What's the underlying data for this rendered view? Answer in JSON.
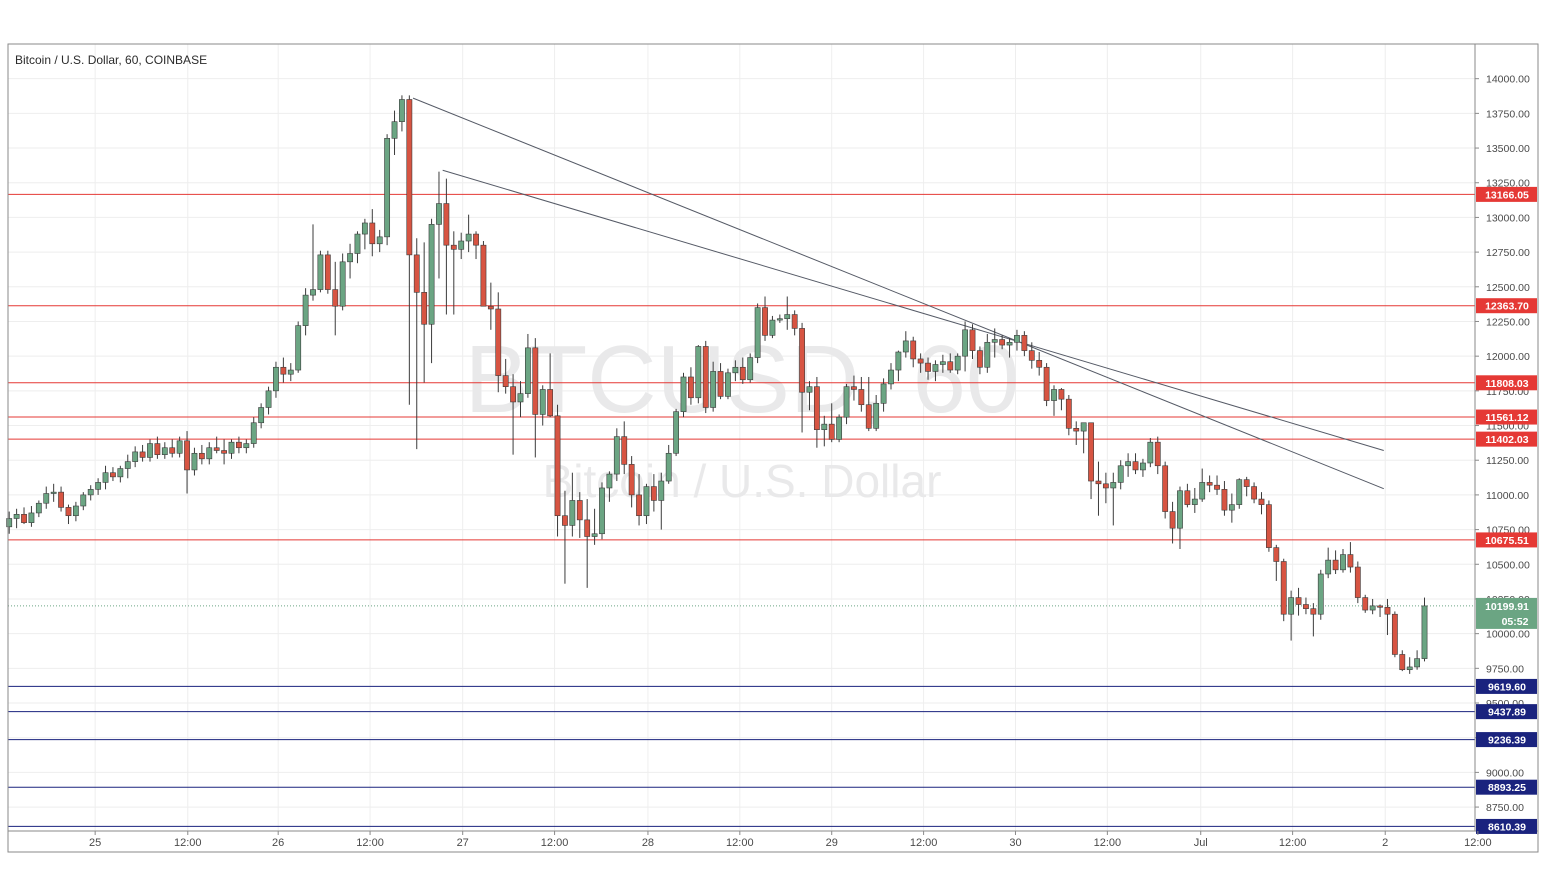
{
  "chart_data": {
    "type": "candlestick",
    "title": "Bitcoin / U.S. Dollar, 60, COINBASE",
    "watermark": {
      "symbol": "BTCUSD, 60",
      "name": "Bitcoin / U.S. Dollar"
    },
    "x_range": [
      0,
      187
    ],
    "y_range": [
      8577.5,
      14250
    ],
    "price_scale_ticks": [
      8750,
      9000,
      9250,
      9500,
      9750,
      10000,
      10250,
      10500,
      10750,
      11000,
      11250,
      11500,
      11750,
      12000,
      12250,
      12500,
      12750,
      13000,
      13250,
      13500,
      13750,
      14000
    ],
    "time_labels": [
      {
        "bar": 11.6,
        "label": "25"
      },
      {
        "bar": 24.1,
        "label": "12:00"
      },
      {
        "bar": 36.3,
        "label": "26"
      },
      {
        "bar": 48.7,
        "label": "12:00"
      },
      {
        "bar": 61.2,
        "label": "27"
      },
      {
        "bar": 73.6,
        "label": "12:00"
      },
      {
        "bar": 86.2,
        "label": "28"
      },
      {
        "bar": 98.6,
        "label": "12:00"
      },
      {
        "bar": 111.0,
        "label": "29"
      },
      {
        "bar": 123.4,
        "label": "12:00"
      },
      {
        "bar": 135.8,
        "label": "30"
      },
      {
        "bar": 148.2,
        "label": "12:00"
      },
      {
        "bar": 160.8,
        "label": "Jul"
      },
      {
        "bar": 173.2,
        "label": "12:00"
      },
      {
        "bar": 185.7,
        "label": "2"
      },
      {
        "bar": 198.2,
        "label": "12:00"
      }
    ],
    "candles": [
      [
        10770,
        10880,
        10720,
        10830
      ],
      [
        10830,
        10900,
        10760,
        10860
      ],
      [
        10860,
        10910,
        10790,
        10800
      ],
      [
        10800,
        10920,
        10770,
        10870
      ],
      [
        10870,
        10960,
        10840,
        10940
      ],
      [
        10940,
        11060,
        10900,
        11010
      ],
      [
        11010,
        11080,
        10950,
        11020
      ],
      [
        11020,
        11060,
        10880,
        10910
      ],
      [
        10910,
        10930,
        10790,
        10850
      ],
      [
        10850,
        10950,
        10810,
        10920
      ],
      [
        10920,
        11020,
        10890,
        11000
      ],
      [
        11000,
        11070,
        10960,
        11040
      ],
      [
        11040,
        11120,
        11000,
        11090
      ],
      [
        11090,
        11210,
        11040,
        11160
      ],
      [
        11160,
        11200,
        11100,
        11130
      ],
      [
        11130,
        11210,
        11090,
        11190
      ],
      [
        11190,
        11290,
        11120,
        11240
      ],
      [
        11240,
        11350,
        11200,
        11310
      ],
      [
        11310,
        11360,
        11240,
        11270
      ],
      [
        11270,
        11400,
        11240,
        11370
      ],
      [
        11370,
        11420,
        11260,
        11290
      ],
      [
        11290,
        11380,
        11260,
        11340
      ],
      [
        11340,
        11400,
        11270,
        11300
      ],
      [
        11300,
        11420,
        11270,
        11390
      ],
      [
        11390,
        11460,
        11010,
        11180
      ],
      [
        11180,
        11340,
        11140,
        11300
      ],
      [
        11300,
        11360,
        11220,
        11260
      ],
      [
        11260,
        11380,
        11220,
        11340
      ],
      [
        11340,
        11420,
        11300,
        11320
      ],
      [
        11320,
        11400,
        11220,
        11300
      ],
      [
        11300,
        11400,
        11260,
        11380
      ],
      [
        11380,
        11420,
        11300,
        11340
      ],
      [
        11340,
        11400,
        11300,
        11370
      ],
      [
        11370,
        11560,
        11340,
        11520
      ],
      [
        11520,
        11660,
        11480,
        11630
      ],
      [
        11630,
        11780,
        11580,
        11750
      ],
      [
        11750,
        11960,
        11700,
        11920
      ],
      [
        11920,
        11990,
        11810,
        11870
      ],
      [
        11870,
        11950,
        11820,
        11900
      ],
      [
        11900,
        12250,
        11880,
        12220
      ],
      [
        12220,
        12490,
        12150,
        12440
      ],
      [
        12440,
        12950,
        12400,
        12480
      ],
      [
        12480,
        12760,
        12460,
        12730
      ],
      [
        12730,
        12760,
        12450,
        12480
      ],
      [
        12480,
        12680,
        12150,
        12360
      ],
      [
        12360,
        12740,
        12330,
        12680
      ],
      [
        12680,
        12810,
        12560,
        12740
      ],
      [
        12740,
        12900,
        12670,
        12880
      ],
      [
        12880,
        12990,
        12770,
        12960
      ],
      [
        12960,
        13060,
        12720,
        12810
      ],
      [
        12810,
        12910,
        12750,
        12860
      ],
      [
        12860,
        13600,
        12800,
        13570
      ],
      [
        13570,
        13770,
        13450,
        13690
      ],
      [
        13690,
        13880,
        13620,
        13850
      ],
      [
        13850,
        13880,
        11650,
        12730
      ],
      [
        12730,
        12850,
        11330,
        12460
      ],
      [
        12460,
        12820,
        11810,
        12230
      ],
      [
        12230,
        12990,
        11950,
        12950
      ],
      [
        12950,
        13330,
        12560,
        13100
      ],
      [
        13100,
        13280,
        12300,
        12800
      ],
      [
        12800,
        12900,
        12300,
        12770
      ],
      [
        12770,
        12890,
        12700,
        12830
      ],
      [
        12830,
        13020,
        12750,
        12880
      ],
      [
        12880,
        12900,
        12700,
        12800
      ],
      [
        12800,
        12830,
        12370,
        12360
      ],
      [
        12360,
        12530,
        12190,
        12340
      ],
      [
        12340,
        12460,
        11740,
        11860
      ],
      [
        11860,
        11980,
        11730,
        11780
      ],
      [
        11780,
        11870,
        11290,
        11670
      ],
      [
        11670,
        11820,
        11560,
        11730
      ],
      [
        11730,
        12160,
        11700,
        12060
      ],
      [
        12060,
        12130,
        11270,
        11580
      ],
      [
        11580,
        11790,
        11500,
        11760
      ],
      [
        11760,
        12020,
        11560,
        11570
      ],
      [
        11570,
        11650,
        10700,
        10850
      ],
      [
        10850,
        11030,
        10360,
        10780
      ],
      [
        10780,
        11160,
        10700,
        10960
      ],
      [
        10960,
        11020,
        10690,
        10820
      ],
      [
        10820,
        10970,
        10330,
        10700
      ],
      [
        10700,
        10900,
        10640,
        10720
      ],
      [
        10720,
        11090,
        10680,
        11050
      ],
      [
        11050,
        11170,
        10950,
        11150
      ],
      [
        11150,
        11480,
        11100,
        11420
      ],
      [
        11420,
        11530,
        11150,
        11220
      ],
      [
        11220,
        11280,
        10910,
        11000
      ],
      [
        11000,
        11150,
        10780,
        10850
      ],
      [
        10850,
        11080,
        10790,
        11060
      ],
      [
        11060,
        11150,
        10880,
        10960
      ],
      [
        10960,
        11160,
        10750,
        11100
      ],
      [
        11100,
        11360,
        11080,
        11300
      ],
      [
        11300,
        11620,
        11280,
        11600
      ],
      [
        11600,
        11880,
        11560,
        11850
      ],
      [
        11850,
        11920,
        11650,
        11700
      ],
      [
        11700,
        12080,
        11660,
        12070
      ],
      [
        12070,
        12110,
        11590,
        11630
      ],
      [
        11630,
        11960,
        11600,
        11890
      ],
      [
        11890,
        11950,
        11690,
        11710
      ],
      [
        11710,
        11910,
        11690,
        11880
      ],
      [
        11880,
        11970,
        11820,
        11920
      ],
      [
        11920,
        11990,
        11800,
        11830
      ],
      [
        11830,
        12020,
        11810,
        11990
      ],
      [
        11990,
        12380,
        11950,
        12350
      ],
      [
        12350,
        12430,
        12110,
        12150
      ],
      [
        12150,
        12290,
        12130,
        12260
      ],
      [
        12260,
        12300,
        12240,
        12270
      ],
      [
        12270,
        12430,
        12190,
        12300
      ],
      [
        12300,
        12330,
        12150,
        12200
      ],
      [
        12200,
        12240,
        11450,
        11740
      ],
      [
        11740,
        11820,
        11610,
        11780
      ],
      [
        11780,
        11850,
        11340,
        11470
      ],
      [
        11470,
        11570,
        11350,
        11510
      ],
      [
        11510,
        11660,
        11380,
        11400
      ],
      [
        11400,
        11580,
        11380,
        11560
      ],
      [
        11560,
        11800,
        11510,
        11780
      ],
      [
        11780,
        11860,
        11680,
        11760
      ],
      [
        11760,
        11850,
        11600,
        11650
      ],
      [
        11650,
        11850,
        11460,
        11480
      ],
      [
        11480,
        11720,
        11460,
        11660
      ],
      [
        11660,
        11840,
        11600,
        11800
      ],
      [
        11800,
        11950,
        11760,
        11900
      ],
      [
        11900,
        12040,
        11820,
        12030
      ],
      [
        12030,
        12180,
        11990,
        12110
      ],
      [
        12110,
        12140,
        11920,
        11980
      ],
      [
        11980,
        12020,
        11880,
        11950
      ],
      [
        11950,
        11990,
        11830,
        11890
      ],
      [
        11890,
        11970,
        11820,
        11940
      ],
      [
        11940,
        12010,
        11880,
        11960
      ],
      [
        11960,
        12020,
        11880,
        11900
      ],
      [
        11900,
        12020,
        11870,
        12000
      ],
      [
        12000,
        12250,
        11890,
        12190
      ],
      [
        12190,
        12230,
        11980,
        12040
      ],
      [
        12040,
        12070,
        11870,
        11920
      ],
      [
        11920,
        12160,
        11880,
        12100
      ],
      [
        12100,
        12200,
        11990,
        12120
      ],
      [
        12120,
        12150,
        12050,
        12080
      ],
      [
        12080,
        12130,
        11990,
        12100
      ],
      [
        12100,
        12190,
        12040,
        12150
      ],
      [
        12150,
        12180,
        12000,
        12040
      ],
      [
        12040,
        12100,
        11910,
        11970
      ],
      [
        11970,
        12030,
        11860,
        11920
      ],
      [
        11920,
        11950,
        11640,
        11680
      ],
      [
        11680,
        11790,
        11570,
        11760
      ],
      [
        11760,
        11770,
        11610,
        11690
      ],
      [
        11690,
        11720,
        11430,
        11480
      ],
      [
        11480,
        11530,
        11360,
        11460
      ],
      [
        11460,
        11520,
        11300,
        11520
      ],
      [
        11520,
        11520,
        10970,
        11100
      ],
      [
        11100,
        11240,
        10850,
        11080
      ],
      [
        11080,
        11160,
        10940,
        11050
      ],
      [
        11050,
        11160,
        10780,
        11090
      ],
      [
        11090,
        11250,
        11040,
        11210
      ],
      [
        11210,
        11300,
        11130,
        11240
      ],
      [
        11240,
        11300,
        11150,
        11180
      ],
      [
        11180,
        11260,
        11130,
        11230
      ],
      [
        11230,
        11410,
        11200,
        11380
      ],
      [
        11380,
        11420,
        11150,
        11210
      ],
      [
        11210,
        11240,
        10830,
        10880
      ],
      [
        10880,
        10950,
        10650,
        10760
      ],
      [
        10760,
        11060,
        10610,
        11030
      ],
      [
        11030,
        11080,
        10910,
        10930
      ],
      [
        10930,
        11050,
        10870,
        10970
      ],
      [
        10970,
        11190,
        10950,
        11090
      ],
      [
        11090,
        11140,
        11020,
        11070
      ],
      [
        11070,
        11140,
        11000,
        11040
      ],
      [
        11040,
        11100,
        10850,
        10890
      ],
      [
        10890,
        11010,
        10800,
        10930
      ],
      [
        10930,
        11120,
        10900,
        11110
      ],
      [
        11110,
        11130,
        10990,
        11060
      ],
      [
        11060,
        11090,
        10940,
        10970
      ],
      [
        10970,
        11020,
        10860,
        10930
      ],
      [
        10930,
        10960,
        10590,
        10620
      ],
      [
        10620,
        10640,
        10380,
        10520
      ],
      [
        10520,
        10540,
        10090,
        10140
      ],
      [
        10140,
        10310,
        9950,
        10260
      ],
      [
        10260,
        10330,
        10130,
        10210
      ],
      [
        10210,
        10260,
        10140,
        10180
      ],
      [
        10180,
        10220,
        9980,
        10140
      ],
      [
        10140,
        10460,
        10100,
        10430
      ],
      [
        10430,
        10620,
        10400,
        10530
      ],
      [
        10530,
        10600,
        10430,
        10460
      ],
      [
        10460,
        10610,
        10440,
        10570
      ],
      [
        10570,
        10660,
        10440,
        10480
      ],
      [
        10480,
        10520,
        10220,
        10260
      ],
      [
        10260,
        10280,
        10150,
        10170
      ],
      [
        10170,
        10250,
        10140,
        10200
      ],
      [
        10200,
        10210,
        10120,
        10190
      ],
      [
        10190,
        10250,
        9990,
        10140
      ],
      [
        10140,
        10160,
        9830,
        9850
      ],
      [
        9850,
        9880,
        9730,
        9740
      ],
      [
        9740,
        9830,
        9710,
        9760
      ],
      [
        9760,
        9880,
        9740,
        9820
      ],
      [
        9820,
        10260,
        9800,
        10200
      ]
    ],
    "horizontal_levels": [
      {
        "price": 13166.05,
        "label": "13166.05",
        "color": "#e53935"
      },
      {
        "price": 12363.7,
        "label": "12363.70",
        "color": "#e53935"
      },
      {
        "price": 11808.03,
        "label": "11808.03",
        "color": "#e53935"
      },
      {
        "price": 11561.12,
        "label": "11561.12",
        "color": "#e53935"
      },
      {
        "price": 11402.03,
        "label": "11402.03",
        "color": "#e53935"
      },
      {
        "price": 10675.51,
        "label": "10675.51",
        "color": "#e53935"
      },
      {
        "price": 9619.6,
        "label": "9619.60",
        "color": "#1a237e"
      },
      {
        "price": 9437.89,
        "label": "9437.89",
        "color": "#1a237e"
      },
      {
        "price": 9236.39,
        "label": "9236.39",
        "color": "#1a237e"
      },
      {
        "price": 8893.25,
        "label": "8893.25",
        "color": "#1a237e"
      },
      {
        "price": 8610.39,
        "label": "8610.39",
        "color": "#1a237e"
      }
    ],
    "trendlines": [
      {
        "from": [
          54.5,
          13860
        ],
        "to": [
          185.5,
          11045
        ]
      },
      {
        "from": [
          58.5,
          13340
        ],
        "to": [
          185.5,
          11320
        ]
      }
    ],
    "current_price": {
      "price": 10199.91,
      "label": "10199.91",
      "countdown": "05:52",
      "color": "#6ba583"
    },
    "up_color": "#6ba583",
    "down_color": "#d75442",
    "grid": true,
    "scale_position": "right"
  }
}
